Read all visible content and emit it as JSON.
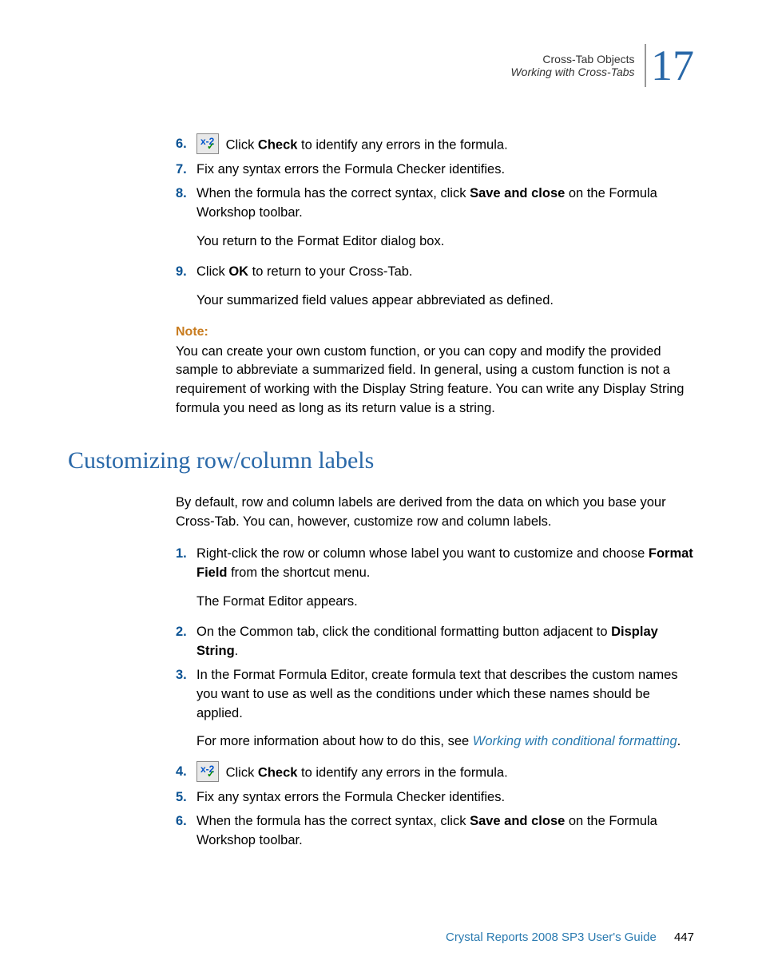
{
  "header": {
    "chapter": "Cross-Tab Objects",
    "section": "Working with Cross-Tabs",
    "chapter_num": "17"
  },
  "top_list": {
    "items": [
      {
        "num": "6.",
        "has_icon": true,
        "pre": " Click ",
        "bold": "Check",
        "post": " to identify any errors in the formula."
      },
      {
        "num": "7.",
        "has_icon": false,
        "text": "Fix any syntax errors the Formula Checker identifies."
      },
      {
        "num": "8.",
        "has_icon": false,
        "pre": "When the formula has the correct syntax, click ",
        "bold": "Save and close",
        "post": " on the Formula Workshop toolbar."
      }
    ],
    "para_after_8": "You return to the Format Editor dialog box.",
    "item9": {
      "num": "9.",
      "pre": "Click ",
      "bold": "OK",
      "post": " to return to your Cross-Tab."
    },
    "para_after_9": "Your summarized field values appear abbreviated as defined."
  },
  "note": {
    "label": "Note:",
    "body": "You can create your own custom function, or you can copy and modify the provided sample to abbreviate a summarized field. In general, using a custom function is not a requirement of working with the Display String feature. You can write any Display String formula you need as long as its return value is a string."
  },
  "heading": "Customizing row/column labels",
  "intro": "By default, row and column labels are derived from the data on which you base your Cross-Tab. You can, however, customize row and column labels.",
  "steps": {
    "s1": {
      "num": "1.",
      "pre": "Right-click the row or column whose label you want to customize and choose ",
      "bold": "Format Field",
      "post": " from the shortcut menu."
    },
    "s1_after": "The Format Editor appears.",
    "s2": {
      "num": "2.",
      "pre": "On the Common tab, click the conditional formatting button adjacent to ",
      "bold": "Display String",
      "post": "."
    },
    "s3": {
      "num": "3.",
      "text": "In the Format Formula Editor, create formula text that describes the custom names you want to use as well as the conditions under which these names should be applied."
    },
    "s3_after_pre": "For more information about how to do this, see ",
    "s3_after_link": "Working with conditional formatting",
    "s3_after_post": ".",
    "s4": {
      "num": "4.",
      "has_icon": true,
      "pre": " Click ",
      "bold": "Check",
      "post": " to identify any errors in the formula."
    },
    "s5": {
      "num": "5.",
      "text": "Fix any syntax errors the Formula Checker identifies."
    },
    "s6": {
      "num": "6.",
      "pre": "When the formula has the correct syntax, click ",
      "bold": "Save and close",
      "post": " on the Formula Workshop toolbar."
    }
  },
  "footer": {
    "title": "Crystal Reports 2008 SP3 User's Guide",
    "page": "447"
  },
  "icon": {
    "x": "x-2",
    "v": "✓"
  }
}
